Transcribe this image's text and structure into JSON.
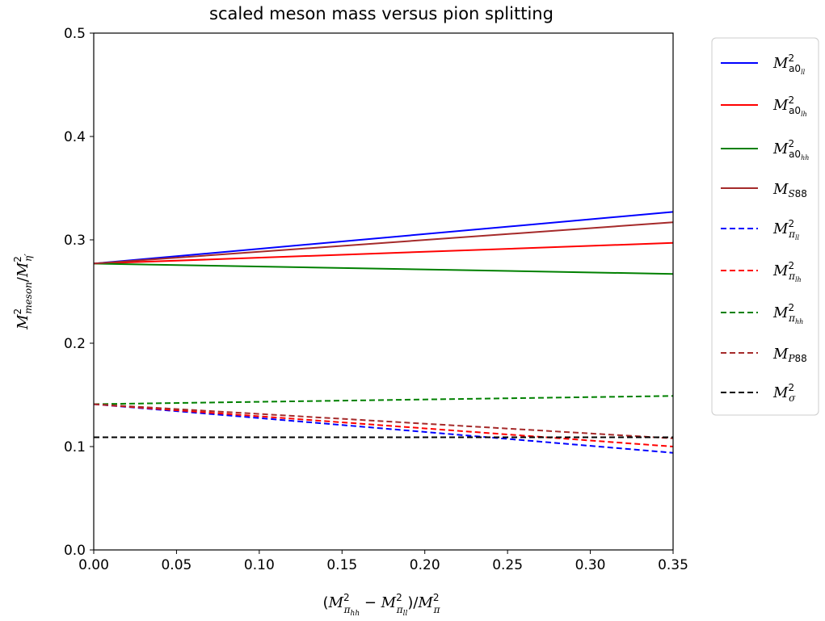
{
  "chart_data": {
    "type": "line",
    "title": "scaled meson mass versus pion splitting",
    "xlabel": "(M²_{π_hh} − M²_{π_ll})/M²_π",
    "ylabel": "M²_meson/M²_η'",
    "xlim": [
      0.0,
      0.35
    ],
    "ylim": [
      0.0,
      0.5
    ],
    "x_ticks": [
      "0.00",
      "0.05",
      "0.10",
      "0.15",
      "0.20",
      "0.25",
      "0.30",
      "0.35"
    ],
    "y_ticks": [
      "0.0",
      "0.1",
      "0.2",
      "0.3",
      "0.4",
      "0.5"
    ],
    "grid": false,
    "legend_position": "outside right",
    "x": [
      0.0,
      0.35
    ],
    "series": [
      {
        "name": "M²_a0_ll",
        "color": "#0000ff",
        "dash": "solid",
        "values": [
          0.277,
          0.327
        ]
      },
      {
        "name": "M²_a0_lh",
        "color": "#ff0000",
        "dash": "solid",
        "values": [
          0.277,
          0.297
        ]
      },
      {
        "name": "M²_a0_hh",
        "color": "#008000",
        "dash": "solid",
        "values": [
          0.277,
          0.267
        ]
      },
      {
        "name": "M_S88",
        "color": "#a52a2a",
        "dash": "solid",
        "values": [
          0.277,
          0.317
        ]
      },
      {
        "name": "M²_π_ll",
        "color": "#0000ff",
        "dash": "dashed",
        "values": [
          0.141,
          0.094
        ]
      },
      {
        "name": "M²_π_lh",
        "color": "#ff0000",
        "dash": "dashed",
        "values": [
          0.141,
          0.1
        ]
      },
      {
        "name": "M²_π_hh",
        "color": "#008000",
        "dash": "dashed",
        "values": [
          0.141,
          0.149
        ]
      },
      {
        "name": "M_P88",
        "color": "#a52a2a",
        "dash": "dashed",
        "values": [
          0.141,
          0.108
        ]
      },
      {
        "name": "M²_σ",
        "color": "#000000",
        "dash": "dashed",
        "values": [
          0.109,
          0.109
        ]
      }
    ]
  }
}
